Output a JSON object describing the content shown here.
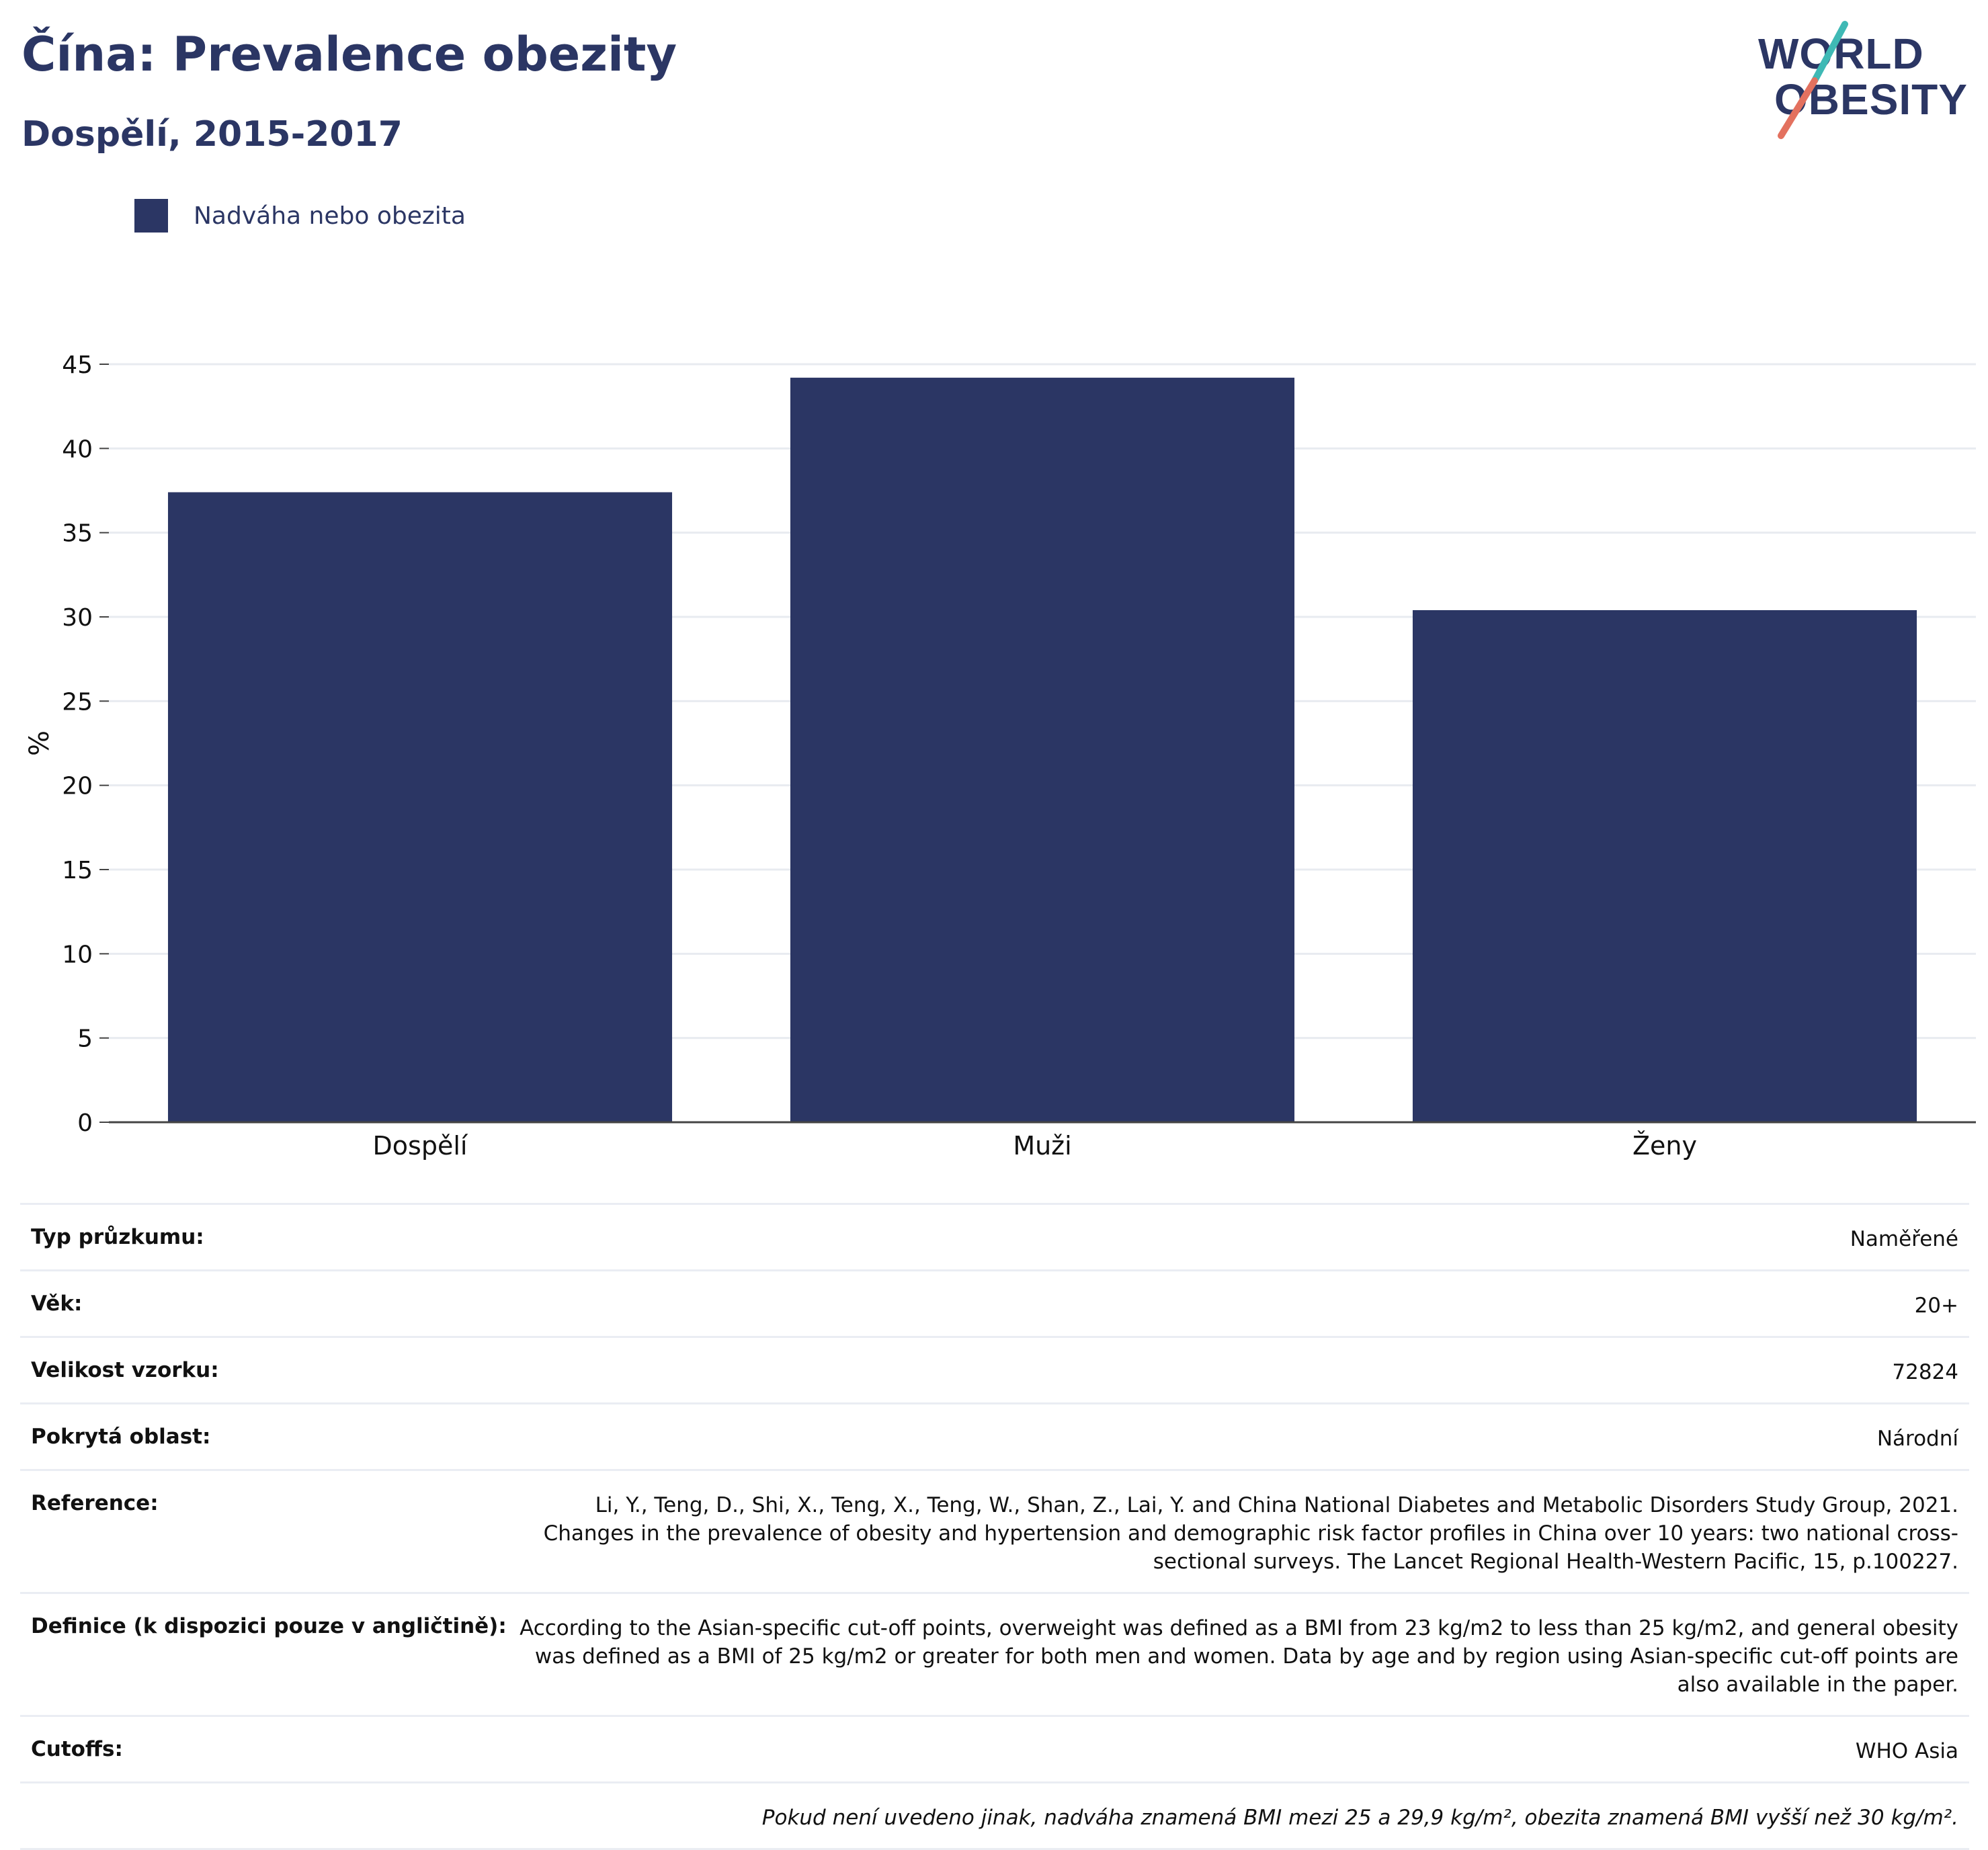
{
  "header": {
    "title": "Čína: Prevalence obezity",
    "subtitle": "Dospělí, 2015-2017"
  },
  "logo": {
    "line1": "WORLD",
    "line2": "OBESITY"
  },
  "colors": {
    "bar": "#2b3664",
    "title": "#2b3664",
    "logo_teal": "#3fb9b5",
    "logo_coral": "#e3715f"
  },
  "chart_data": {
    "type": "bar",
    "categories": [
      "Dospělí",
      "Muži",
      "Ženy"
    ],
    "series": [
      {
        "name": "Nadváha nebo obezita",
        "values": [
          37.4,
          44.2,
          30.4
        ]
      }
    ],
    "ylabel": "%",
    "ylim": [
      0,
      45
    ],
    "yticks": [
      0,
      5,
      10,
      15,
      20,
      25,
      30,
      35,
      40,
      45
    ],
    "grid": true,
    "legend_position": "top-left"
  },
  "info": [
    {
      "label": "Typ průzkumu:",
      "value": "Naměřené"
    },
    {
      "label": "Věk:",
      "value": "20+"
    },
    {
      "label": "Velikost vzorku:",
      "value": "72824"
    },
    {
      "label": "Pokrytá oblast:",
      "value": "Národní"
    },
    {
      "label": "Reference:",
      "value": "Li, Y., Teng, D., Shi, X., Teng, X., Teng, W., Shan, Z., Lai, Y. and China National Diabetes and Metabolic Disorders Study Group, 2021. Changes in the prevalence of obesity and hypertension and demographic risk factor profiles in China over 10 years: two national cross-sectional surveys. The Lancet Regional Health-Western Pacific, 15, p.100227."
    },
    {
      "label": "Definice (k dispozici pouze v angličtině):",
      "value": "According to the Asian-specific cut-off points, overweight was defined as a BMI from 23 kg/m2 to less than 25 kg/m2, and general obesity was defined as a BMI of 25 kg/m2 or greater for both men and women. Data by age and by region using Asian-specific cut-off points are also available in the paper."
    },
    {
      "label": "Cutoffs:",
      "value": "WHO Asia"
    }
  ],
  "footnote": "Pokud není uvedeno jinak, nadváha znamená BMI mezi 25 a 29,9 kg/m², obezita znamená BMI vyšší než 30 kg/m²."
}
